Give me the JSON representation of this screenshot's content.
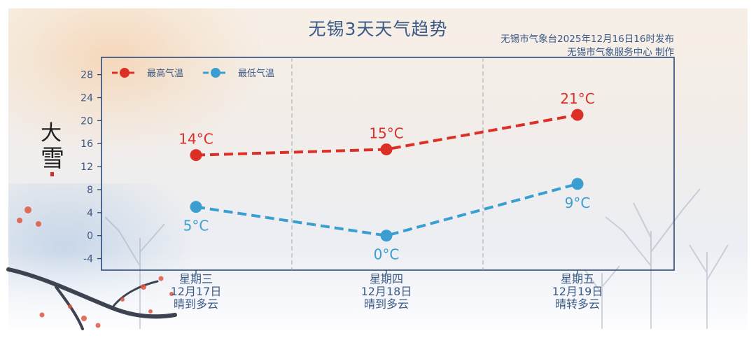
{
  "title": "无锡3天天气趋势",
  "source": {
    "line1": "无锡市气象台2025年12月16日16时发布",
    "line2": "无锡市气象服务中心 制作"
  },
  "decoration": {
    "seal_text": "大雪"
  },
  "colors": {
    "high": "#dc2f26",
    "low": "#3a9ed1",
    "axis": "#2e4a78",
    "text": "#3b5a86"
  },
  "chart_data": {
    "type": "line",
    "categories": [
      {
        "weekday": "星期三",
        "date": "12月17日",
        "weather": "晴到多云"
      },
      {
        "weekday": "星期四",
        "date": "12月18日",
        "weather": "晴到多云"
      },
      {
        "weekday": "星期五",
        "date": "12月19日",
        "weather": "晴转多云"
      }
    ],
    "series": [
      {
        "name": "最高气温",
        "values": [
          14,
          15,
          21
        ],
        "labels": [
          "14°C",
          "15°C",
          "21°C"
        ]
      },
      {
        "name": "最低气温",
        "values": [
          5,
          0,
          9
        ],
        "labels": [
          "5°C",
          "0°C",
          "9°C"
        ]
      }
    ],
    "yticks": [
      "28",
      "24",
      "20",
      "16",
      "12",
      "8",
      "4",
      "0",
      "-4"
    ],
    "ylim": [
      -6,
      31
    ],
    "legend": "top-left",
    "grid": "vertical dashed separators between days"
  }
}
